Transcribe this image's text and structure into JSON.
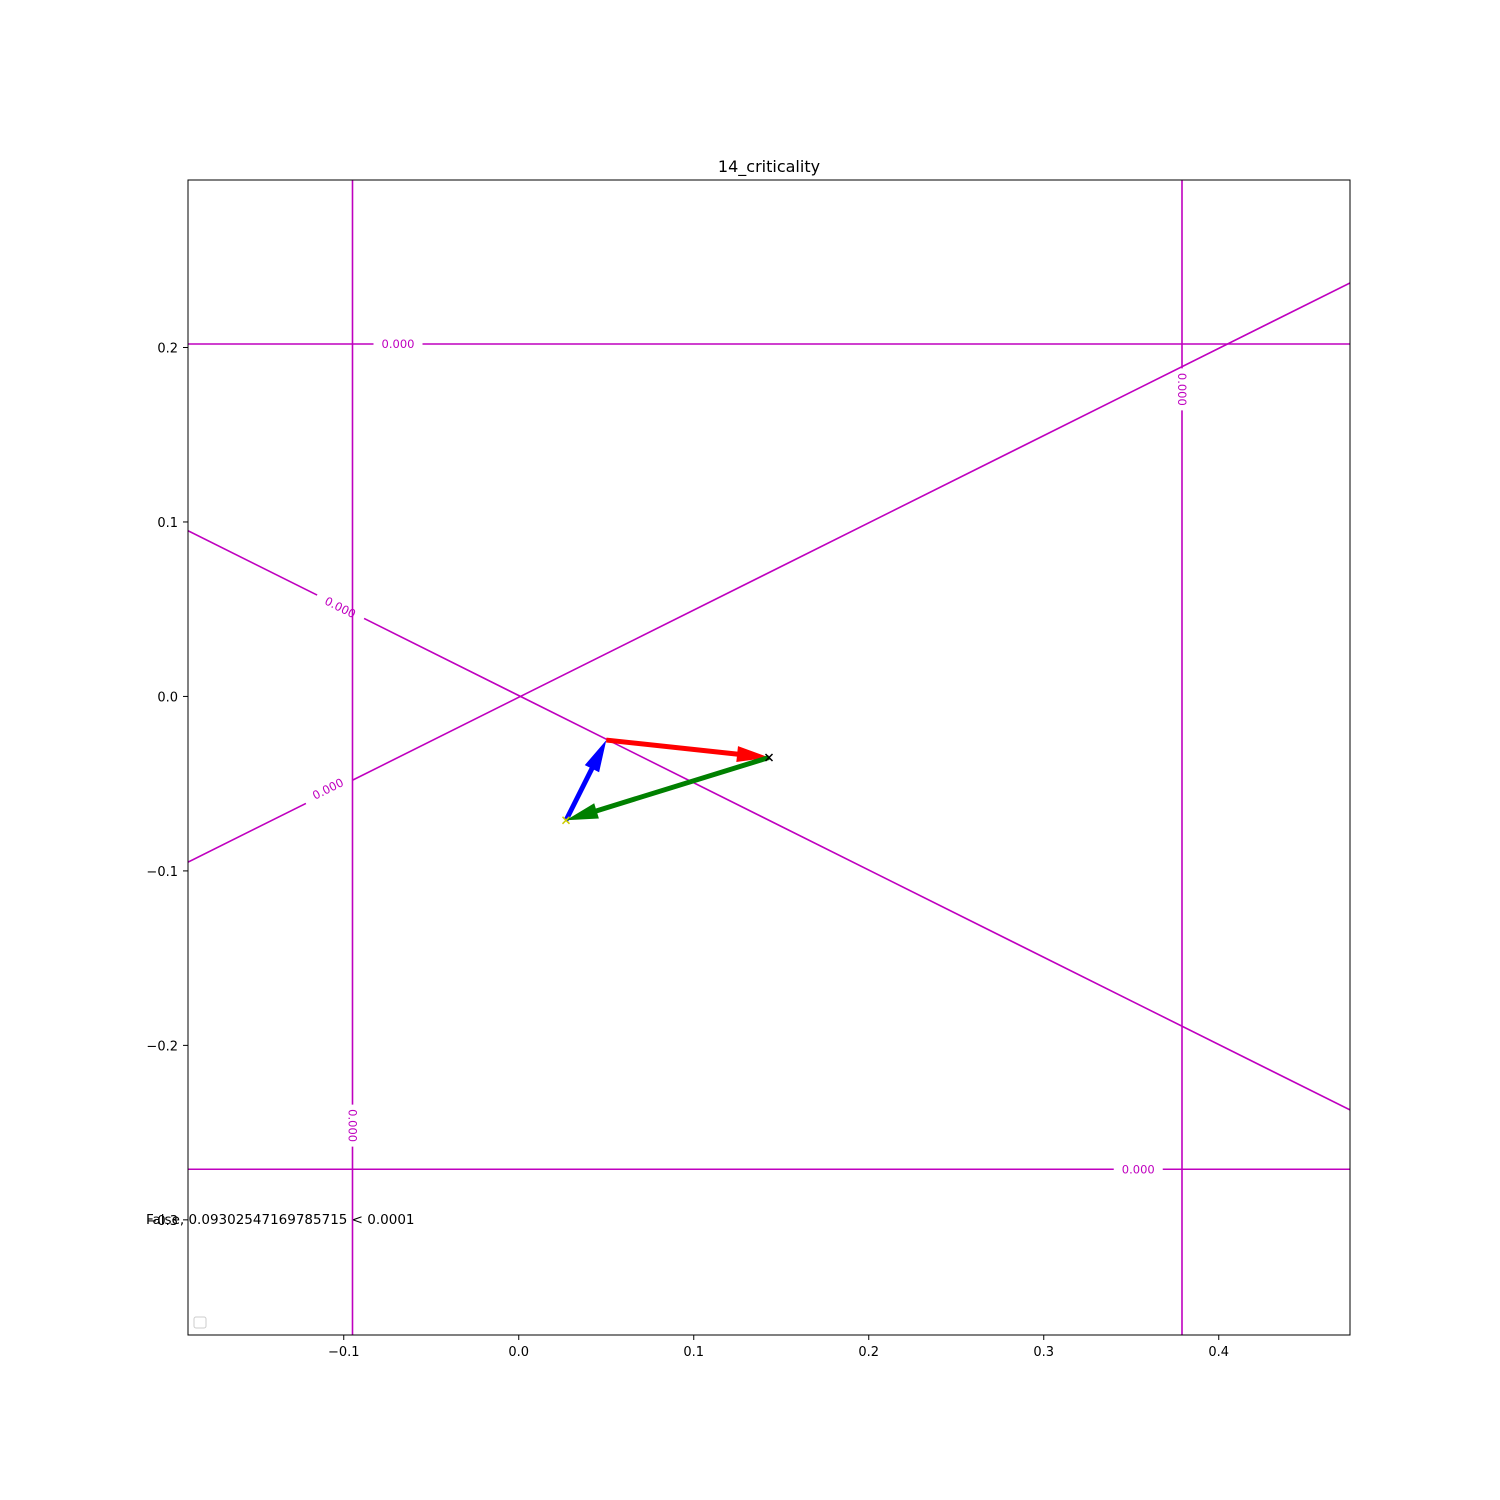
{
  "chart_data": {
    "type": "line",
    "title": "14_criticality",
    "xlabel": "",
    "ylabel": "",
    "xlim": [
      -0.189,
      0.475
    ],
    "ylim": [
      -0.366,
      0.296
    ],
    "x_ticks": [
      -0.1,
      0.0,
      0.1,
      0.2,
      0.3,
      0.4
    ],
    "x_tick_labels": [
      "−0.1",
      "0.0",
      "0.1",
      "0.2",
      "0.3",
      "0.4"
    ],
    "y_ticks": [
      0.2,
      0.1,
      0.0,
      -0.1,
      -0.2,
      -0.3
    ],
    "y_tick_labels": [
      "0.2",
      "0.1",
      "0.0",
      "−0.1",
      "−0.2",
      "−0.3"
    ],
    "grid": false,
    "legend": "lower-left (empty)",
    "contour_color": "#bf00bf",
    "contour_lines": [
      {
        "name": "left-vertical",
        "x1": -0.095,
        "y1": 0.296,
        "x2": -0.095,
        "y2": -0.366,
        "label": "0.000",
        "label_at": [
          -0.095,
          -0.246
        ],
        "label_angle": 90,
        "label_gap": 0.024
      },
      {
        "name": "right-vertical",
        "x1": 0.379,
        "y1": 0.296,
        "x2": 0.379,
        "y2": -0.366,
        "label": "0.000",
        "label_at": [
          0.379,
          0.176
        ],
        "label_angle": 90,
        "label_gap": 0.024
      },
      {
        "name": "top-horizontal",
        "x1": -0.189,
        "y1": 0.202,
        "x2": 0.475,
        "y2": 0.202,
        "label": "0.000",
        "label_at": [
          -0.069,
          0.202
        ],
        "label_angle": 0,
        "label_gap": 0.028
      },
      {
        "name": "bottom-horizontal",
        "x1": -0.189,
        "y1": -0.271,
        "x2": 0.475,
        "y2": -0.271,
        "label": "0.000",
        "label_at": [
          0.354,
          -0.271
        ],
        "label_angle": 0,
        "label_gap": 0.028
      },
      {
        "name": "descending-diagonal",
        "x1": -0.189,
        "y1": 0.095,
        "x2": 0.475,
        "y2": -0.237,
        "label": "0.000",
        "label_at": [
          -0.102,
          0.051
        ],
        "label_angle": 26.6,
        "label_gap": 0.03
      },
      {
        "name": "ascending-diagonal",
        "x1": -0.189,
        "y1": -0.095,
        "x2": 0.475,
        "y2": 0.237,
        "label": "0.000",
        "label_at": [
          -0.109,
          -0.053
        ],
        "label_angle": -26.6,
        "label_gap": 0.03
      }
    ],
    "arrows": [
      {
        "name": "blue-arrow",
        "color": "#0000ff",
        "from": [
          0.027,
          -0.071
        ],
        "to": [
          0.05,
          -0.025
        ]
      },
      {
        "name": "red-arrow",
        "color": "#ff0000",
        "from": [
          0.05,
          -0.025
        ],
        "to": [
          0.143,
          -0.035
        ]
      },
      {
        "name": "green-arrow",
        "color": "#008000",
        "from": [
          0.143,
          -0.035
        ],
        "to": [
          0.027,
          -0.071
        ]
      }
    ],
    "markers": [
      {
        "name": "x-marker-black",
        "x": 0.143,
        "y": -0.035,
        "symbol": "x",
        "color": "#000000"
      },
      {
        "name": "x-marker-yellow",
        "x": 0.027,
        "y": -0.071,
        "symbol": "x",
        "color": "#cccc00"
      }
    ],
    "annotation": {
      "text": "False, 0.09302547169785715 < 0.0001",
      "x": -0.201,
      "y": -0.3
    }
  }
}
